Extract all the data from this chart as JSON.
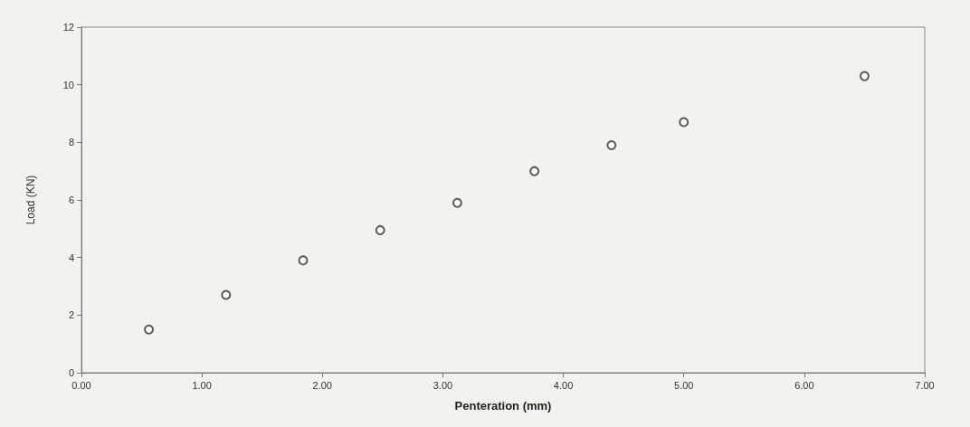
{
  "chart_data": {
    "type": "scatter",
    "xlabel": "Penteration (mm)",
    "ylabel": "Load (KN)",
    "x": [
      0.56,
      1.2,
      1.84,
      2.48,
      3.12,
      3.76,
      4.4,
      5.0,
      6.5
    ],
    "series": [
      {
        "color": "#333333",
        "values": [
          1.5,
          2.7,
          3.9,
          4.95,
          5.9,
          7.0,
          7.9,
          8.7,
          10.3
        ]
      }
    ],
    "xlim": [
      0,
      7
    ],
    "xticks": [
      {
        "value": 0,
        "label": "0.00"
      },
      {
        "value": 1,
        "label": "1.00"
      },
      {
        "value": 2,
        "label": "2.00"
      },
      {
        "value": 3,
        "label": "3.00"
      },
      {
        "value": 4,
        "label": "4.00"
      },
      {
        "value": 5,
        "label": "5.00"
      },
      {
        "value": 6,
        "label": "6.00"
      },
      {
        "value": 7,
        "label": "7.00"
      }
    ],
    "ylim": [
      0,
      12
    ],
    "yticks": [
      0,
      2,
      4,
      6,
      8,
      10,
      12
    ],
    "grid": false,
    "marker": "circle"
  }
}
